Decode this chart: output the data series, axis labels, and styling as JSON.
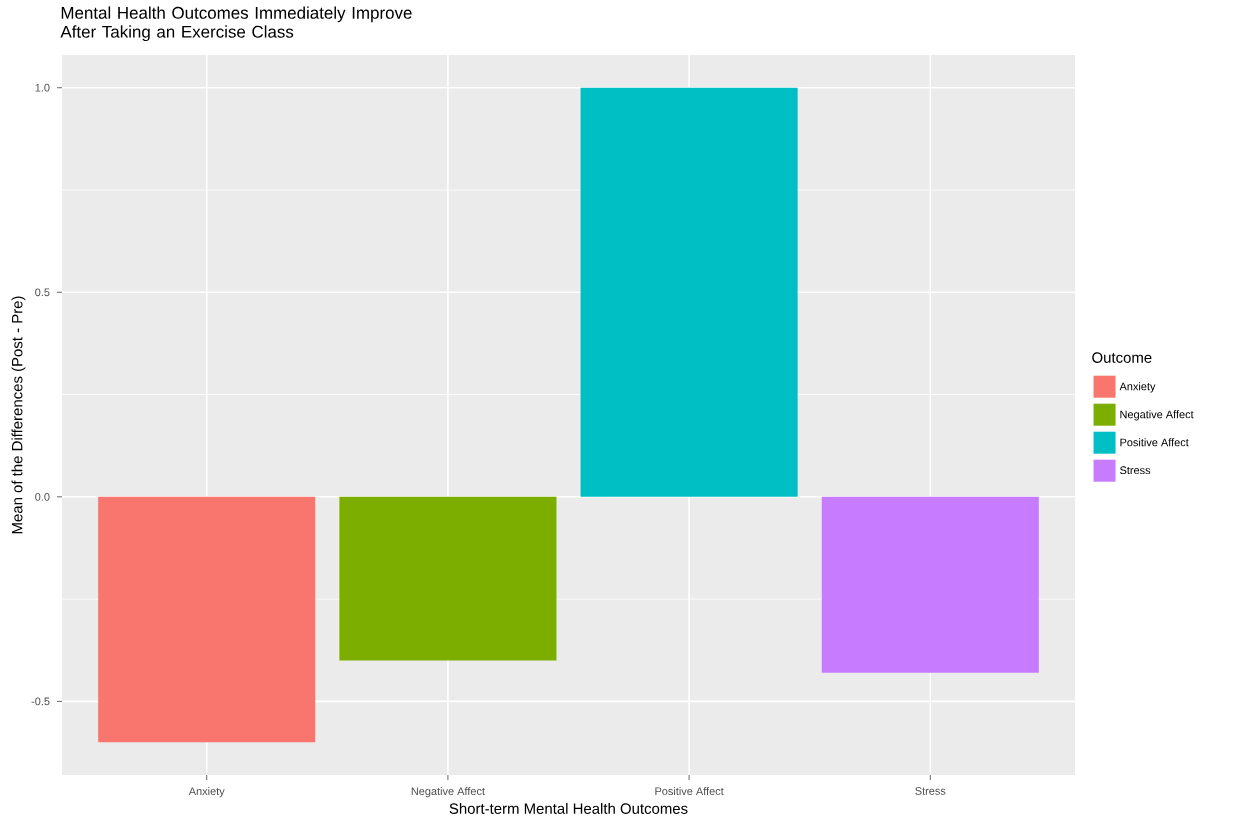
{
  "chart_data": {
    "type": "bar",
    "title": "Mental Health Outcomes Immediately Improve After Taking an Exercise Class",
    "xlabel": "Short-term Mental Health Outcomes",
    "ylabel": "Mean of the Differences (Post - Pre)",
    "legend_title": "Outcome",
    "categories": [
      "Anxiety",
      "Negative Affect",
      "Positive Affect",
      "Stress"
    ],
    "series": [
      {
        "name": "Anxiety",
        "color": "#f8766d",
        "values": [
          -0.6,
          null,
          null,
          null
        ]
      },
      {
        "name": "Negative Affect",
        "color": "#7cae00",
        "values": [
          null,
          -0.4,
          null,
          null
        ]
      },
      {
        "name": "Positive Affect",
        "color": "#00bfc4",
        "values": [
          null,
          null,
          1.0,
          null
        ]
      },
      {
        "name": "Stress",
        "color": "#c77cff",
        "values": [
          null,
          null,
          null,
          -0.43
        ]
      }
    ],
    "ylim": [
      -0.68,
      1.08
    ],
    "yticks": [
      {
        "value": -0.5,
        "label": "-0.5"
      },
      {
        "value": 0,
        "label": "0.0"
      },
      {
        "value": 0.5,
        "label": "0.5"
      },
      {
        "value": 1,
        "label": "1.0"
      }
    ],
    "grid": true,
    "legend": "right"
  }
}
